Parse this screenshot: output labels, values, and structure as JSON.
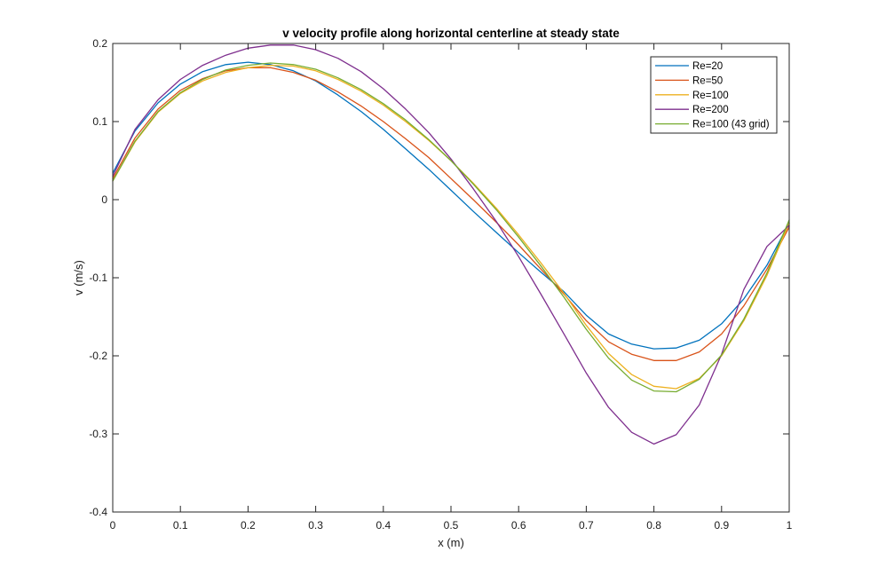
{
  "chart_data": {
    "type": "line",
    "title": "v velocity profile along horizontal centerline at steady state",
    "xlabel": "x (m)",
    "ylabel": "v (m/s)",
    "xlim": [
      0,
      1
    ],
    "ylim": [
      -0.4,
      0.2
    ],
    "xticks": [
      0,
      0.1,
      0.2,
      0.3,
      0.4,
      0.5,
      0.6,
      0.7,
      0.8,
      0.9,
      1
    ],
    "xtick_labels": [
      "0",
      "0.1",
      "0.2",
      "0.3",
      "0.4",
      "0.5",
      "0.6",
      "0.7",
      "0.8",
      "0.9",
      "1"
    ],
    "yticks": [
      -0.4,
      -0.3,
      -0.2,
      -0.1,
      0,
      0.1,
      0.2
    ],
    "ytick_labels": [
      "-0.4",
      "-0.3",
      "-0.2",
      "-0.1",
      "0",
      "0.1",
      "0.2"
    ],
    "grid": false,
    "legend_position": "top-right",
    "series": [
      {
        "name": "Re=20",
        "color": "#0072BD",
        "x": [
          0,
          0.033,
          0.067,
          0.1,
          0.133,
          0.167,
          0.2,
          0.233,
          0.267,
          0.3,
          0.333,
          0.367,
          0.4,
          0.433,
          0.467,
          0.5,
          0.533,
          0.567,
          0.6,
          0.633,
          0.667,
          0.7,
          0.733,
          0.767,
          0.8,
          0.833,
          0.867,
          0.9,
          0.933,
          0.967,
          1
        ],
        "y": [
          0.034,
          0.088,
          0.124,
          0.148,
          0.164,
          0.173,
          0.176,
          0.173,
          0.165,
          0.152,
          0.134,
          0.113,
          0.09,
          0.065,
          0.039,
          0.012,
          -0.015,
          -0.042,
          -0.068,
          -0.093,
          -0.118,
          -0.148,
          -0.172,
          -0.185,
          -0.191,
          -0.19,
          -0.18,
          -0.159,
          -0.127,
          -0.084,
          -0.03
        ]
      },
      {
        "name": "Re=50",
        "color": "#D95319",
        "x": [
          0,
          0.033,
          0.067,
          0.1,
          0.133,
          0.167,
          0.2,
          0.233,
          0.267,
          0.3,
          0.333,
          0.367,
          0.4,
          0.433,
          0.467,
          0.5,
          0.533,
          0.567,
          0.6,
          0.633,
          0.667,
          0.7,
          0.733,
          0.767,
          0.8,
          0.833,
          0.867,
          0.9,
          0.933,
          0.967,
          1
        ],
        "y": [
          0.027,
          0.079,
          0.116,
          0.14,
          0.155,
          0.165,
          0.169,
          0.169,
          0.163,
          0.153,
          0.138,
          0.12,
          0.1,
          0.078,
          0.054,
          0.027,
          0.0,
          -0.029,
          -0.058,
          -0.089,
          -0.121,
          -0.155,
          -0.182,
          -0.198,
          -0.206,
          -0.206,
          -0.195,
          -0.172,
          -0.136,
          -0.089,
          -0.035
        ]
      },
      {
        "name": "Re=100",
        "color": "#EDB120",
        "x": [
          0,
          0.033,
          0.067,
          0.1,
          0.133,
          0.167,
          0.2,
          0.233,
          0.267,
          0.3,
          0.333,
          0.367,
          0.4,
          0.433,
          0.467,
          0.5,
          0.533,
          0.567,
          0.6,
          0.633,
          0.667,
          0.7,
          0.733,
          0.767,
          0.8,
          0.833,
          0.867,
          0.9,
          0.933,
          0.967,
          1
        ],
        "y": [
          0.024,
          0.074,
          0.112,
          0.136,
          0.152,
          0.163,
          0.169,
          0.172,
          0.171,
          0.165,
          0.154,
          0.139,
          0.121,
          0.1,
          0.076,
          0.05,
          0.021,
          -0.011,
          -0.045,
          -0.081,
          -0.12,
          -0.161,
          -0.197,
          -0.224,
          -0.239,
          -0.242,
          -0.229,
          -0.2,
          -0.155,
          -0.097,
          -0.03
        ]
      },
      {
        "name": "Re=200",
        "color": "#7E2F8E",
        "x": [
          0,
          0.033,
          0.067,
          0.1,
          0.133,
          0.167,
          0.2,
          0.233,
          0.267,
          0.3,
          0.333,
          0.367,
          0.4,
          0.433,
          0.467,
          0.5,
          0.533,
          0.567,
          0.6,
          0.633,
          0.667,
          0.7,
          0.733,
          0.767,
          0.8,
          0.833,
          0.867,
          0.9,
          0.933,
          0.967,
          1
        ],
        "y": [
          0.03,
          0.09,
          0.128,
          0.154,
          0.172,
          0.185,
          0.194,
          0.198,
          0.198,
          0.192,
          0.181,
          0.164,
          0.142,
          0.116,
          0.086,
          0.052,
          0.014,
          -0.028,
          -0.073,
          -0.121,
          -0.172,
          -0.222,
          -0.266,
          -0.298,
          -0.313,
          -0.301,
          -0.263,
          -0.198,
          -0.115,
          -0.06,
          -0.033
        ]
      },
      {
        "name": "Re=100 (43 grid)",
        "color": "#77AC30",
        "x": [
          0,
          0.033,
          0.067,
          0.1,
          0.133,
          0.167,
          0.2,
          0.233,
          0.267,
          0.3,
          0.333,
          0.367,
          0.4,
          0.433,
          0.467,
          0.5,
          0.533,
          0.567,
          0.6,
          0.633,
          0.667,
          0.7,
          0.733,
          0.767,
          0.8,
          0.833,
          0.867,
          0.9,
          0.933,
          0.967,
          1
        ],
        "y": [
          0.024,
          0.075,
          0.113,
          0.137,
          0.154,
          0.166,
          0.172,
          0.175,
          0.173,
          0.167,
          0.156,
          0.141,
          0.123,
          0.102,
          0.077,
          0.05,
          0.02,
          -0.013,
          -0.048,
          -0.085,
          -0.125,
          -0.166,
          -0.203,
          -0.231,
          -0.245,
          -0.246,
          -0.23,
          -0.199,
          -0.153,
          -0.094,
          -0.026
        ]
      }
    ]
  }
}
